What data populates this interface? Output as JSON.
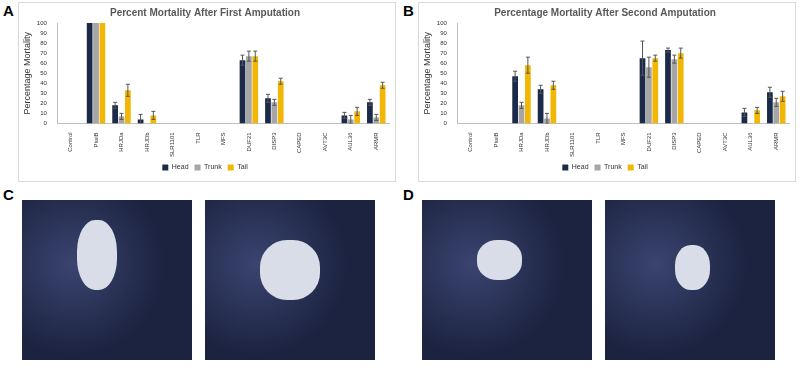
{
  "panel_labels": [
    "A",
    "B",
    "C",
    "D"
  ],
  "chart_data": [
    {
      "type": "bar",
      "title": "Percent Mortality After First Amputation",
      "y_label": "Percentage Mortality",
      "categories": [
        "Control",
        "PiwiB",
        "HRJDa",
        "HRJDb",
        "SLR1101",
        "TLR",
        "MFS",
        "DUF21",
        "DISP3",
        "CAPED",
        "AVT3C",
        "AUL36",
        "ARMR"
      ],
      "series": [
        {
          "name": "Head",
          "color": "#1b2a49",
          "values": [
            0,
            100,
            18,
            4,
            0,
            0,
            0,
            63,
            25,
            0,
            0,
            8,
            21
          ],
          "errors": [
            0,
            0,
            3,
            5,
            0,
            0,
            0,
            5,
            4,
            0,
            0,
            3,
            3
          ]
        },
        {
          "name": "Trunk",
          "color": "#a6a6a6",
          "values": [
            0,
            100,
            7,
            0,
            0,
            0,
            0,
            67,
            21,
            0,
            0,
            4,
            6
          ],
          "errors": [
            0,
            0,
            3,
            0,
            0,
            0,
            0,
            5,
            3,
            0,
            0,
            4,
            3
          ]
        },
        {
          "name": "Tail",
          "color": "#f2b705",
          "values": [
            0,
            100,
            33,
            8,
            0,
            0,
            0,
            67,
            42,
            0,
            0,
            12,
            38
          ],
          "errors": [
            0,
            0,
            6,
            4,
            0,
            0,
            0,
            5,
            3,
            0,
            0,
            4,
            3
          ]
        }
      ],
      "ylim": [
        0,
        100
      ],
      "yticks": [
        0,
        10,
        20,
        30,
        40,
        50,
        60,
        70,
        80,
        90,
        100
      ],
      "grid": false,
      "legend": "bottom"
    },
    {
      "type": "bar",
      "title": "Percentage Mortality After Second Amputation",
      "y_label": "Percentage Mortality",
      "categories": [
        "Control",
        "PiwiB",
        "HRJDa",
        "HRJDb",
        "SLR1101",
        "TLR",
        "MFS",
        "DUF21",
        "DISP3",
        "CAPED",
        "AVT3C",
        "AUL36",
        "ARMR"
      ],
      "series": [
        {
          "name": "Head",
          "color": "#1b2a49",
          "values": [
            0,
            0,
            47,
            34,
            0,
            0,
            0,
            65,
            73,
            0,
            0,
            11,
            31
          ],
          "errors": [
            0,
            0,
            5,
            4,
            0,
            0,
            0,
            17,
            2,
            0,
            0,
            4,
            5
          ]
        },
        {
          "name": "Trunk",
          "color": "#a6a6a6",
          "values": [
            0,
            0,
            18,
            5,
            0,
            0,
            0,
            56,
            64,
            0,
            0,
            0,
            21
          ],
          "errors": [
            0,
            0,
            3,
            5,
            0,
            0,
            0,
            10,
            4,
            0,
            0,
            0,
            4
          ]
        },
        {
          "name": "Tail",
          "color": "#f2b705",
          "values": [
            0,
            0,
            58,
            38,
            0,
            0,
            0,
            65,
            70,
            0,
            0,
            13,
            27
          ],
          "errors": [
            0,
            0,
            8,
            4,
            0,
            0,
            0,
            3,
            5,
            0,
            0,
            3,
            5
          ]
        }
      ],
      "ylim": [
        0,
        100
      ],
      "yticks": [
        0,
        10,
        20,
        30,
        40,
        50,
        60,
        70,
        80,
        90,
        100
      ],
      "grid": false,
      "legend": "bottom"
    }
  ]
}
